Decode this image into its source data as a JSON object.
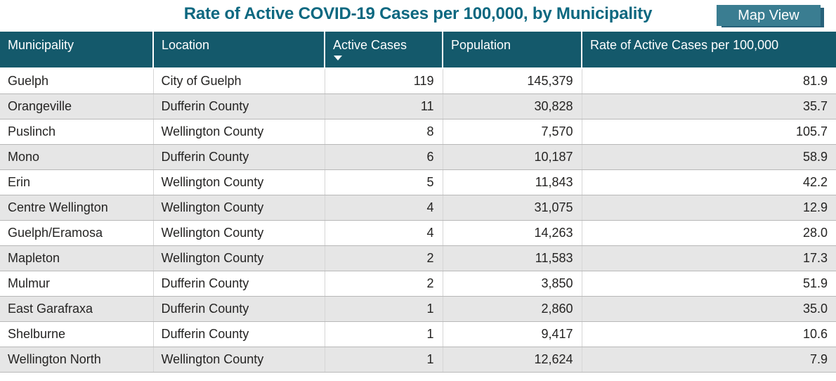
{
  "title": "Rate of Active COVID-19 Cases per 100,000, by Municipality",
  "toolbar": {
    "map_view_label": "Map View"
  },
  "colors": {
    "title_color": "#0C6880",
    "header_bg": "#14596B",
    "button_bg": "#3A7D91",
    "button_shadow": "#27617A",
    "row_alt": "#E6E6E6",
    "row_border": "#B8B8B8",
    "col_border": "#D6D6D6",
    "body_text": "#252423"
  },
  "sort": {
    "column": "Active Cases",
    "direction": "descending"
  },
  "table": {
    "columns": [
      {
        "label": "Municipality",
        "align": "left"
      },
      {
        "label": "Location",
        "align": "left"
      },
      {
        "label": "Active Cases",
        "align": "right"
      },
      {
        "label": "Population",
        "align": "right"
      },
      {
        "label": "Rate of Active Cases per 100,000",
        "align": "right"
      }
    ],
    "rows": [
      [
        "Guelph",
        "City of Guelph",
        "119",
        "145,379",
        "81.9"
      ],
      [
        "Orangeville",
        "Dufferin County",
        "11",
        "30,828",
        "35.7"
      ],
      [
        "Puslinch",
        "Wellington County",
        "8",
        "7,570",
        "105.7"
      ],
      [
        "Mono",
        "Dufferin County",
        "6",
        "10,187",
        "58.9"
      ],
      [
        "Erin",
        "Wellington County",
        "5",
        "11,843",
        "42.2"
      ],
      [
        "Centre Wellington",
        "Wellington County",
        "4",
        "31,075",
        "12.9"
      ],
      [
        "Guelph/Eramosa",
        "Wellington County",
        "4",
        "14,263",
        "28.0"
      ],
      [
        "Mapleton",
        "Wellington County",
        "2",
        "11,583",
        "17.3"
      ],
      [
        "Mulmur",
        "Dufferin County",
        "2",
        "3,850",
        "51.9"
      ],
      [
        "East Garafraxa",
        "Dufferin County",
        "1",
        "2,860",
        "35.0"
      ],
      [
        "Shelburne",
        "Dufferin County",
        "1",
        "9,417",
        "10.6"
      ],
      [
        "Wellington North",
        "Wellington County",
        "1",
        "12,624",
        "7.9"
      ]
    ]
  }
}
